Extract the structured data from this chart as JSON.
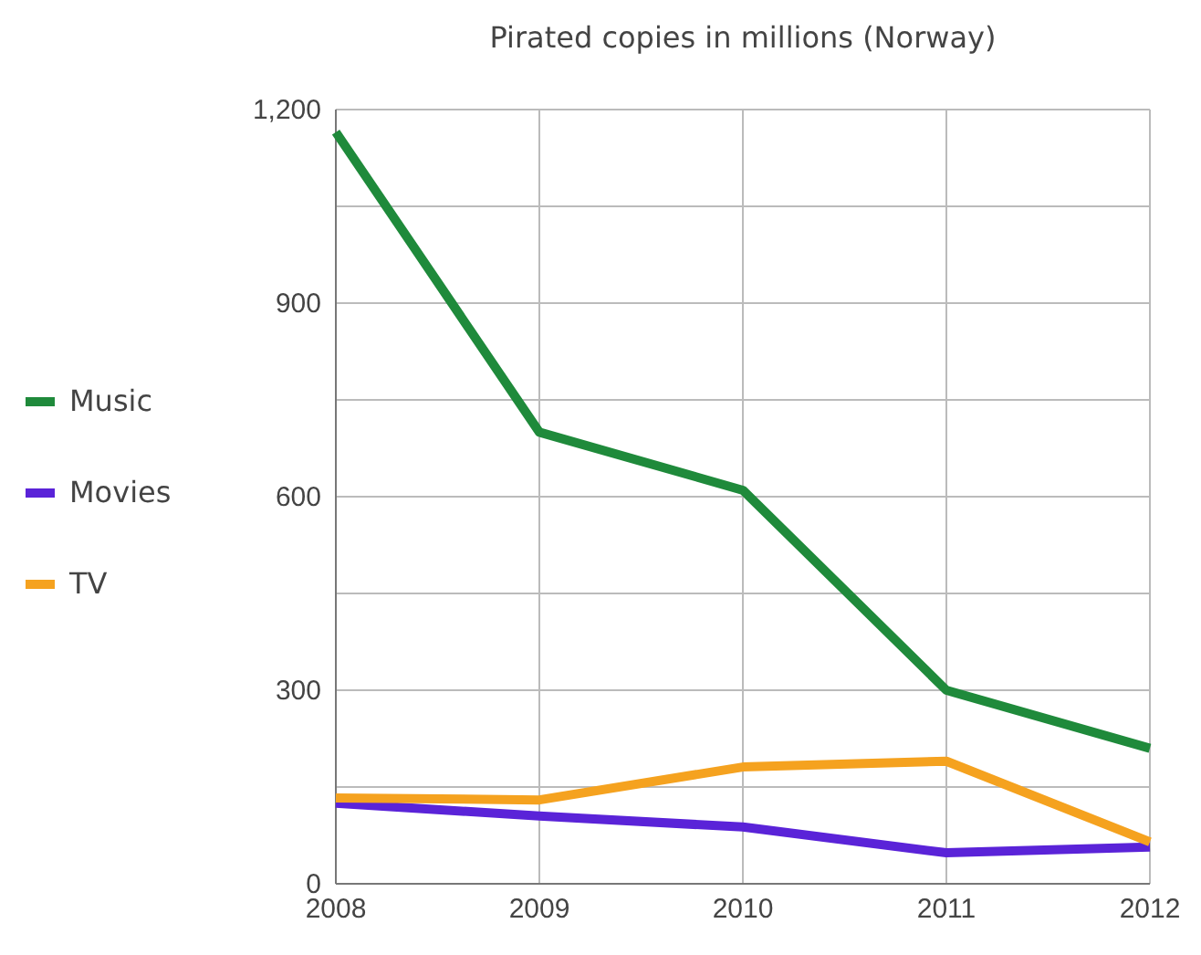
{
  "chart_data": {
    "type": "line",
    "title": "Pirated copies in millions (Norway)",
    "x": [
      2008,
      2009,
      2010,
      2011,
      2012
    ],
    "series": [
      {
        "name": "Music",
        "color": "#1f8a3b",
        "values": [
          1165,
          700,
          610,
          300,
          210
        ]
      },
      {
        "name": "Movies",
        "color": "#5a23d8",
        "values": [
          125,
          105,
          88,
          48,
          57
        ]
      },
      {
        "name": "TV",
        "color": "#f5a21f",
        "values": [
          133,
          130,
          181,
          190,
          65
        ]
      }
    ],
    "xlim": [
      2008,
      2012
    ],
    "xticks": [
      2008,
      2009,
      2010,
      2011,
      2012
    ],
    "ylim": [
      0,
      1200
    ],
    "yticks": [
      0,
      {
        "value": 150,
        "label": null
      },
      {
        "value": 300,
        "label": "300"
      },
      {
        "value": 450,
        "label": null
      },
      {
        "value": 600,
        "label": "600"
      },
      {
        "value": 750,
        "label": null
      },
      {
        "value": 900,
        "label": "900"
      },
      {
        "value": 1050,
        "label": null
      },
      {
        "value": 1200,
        "label": "1,200"
      }
    ],
    "grid": true,
    "legend": "left",
    "marker": "none",
    "line_style": "solid"
  }
}
